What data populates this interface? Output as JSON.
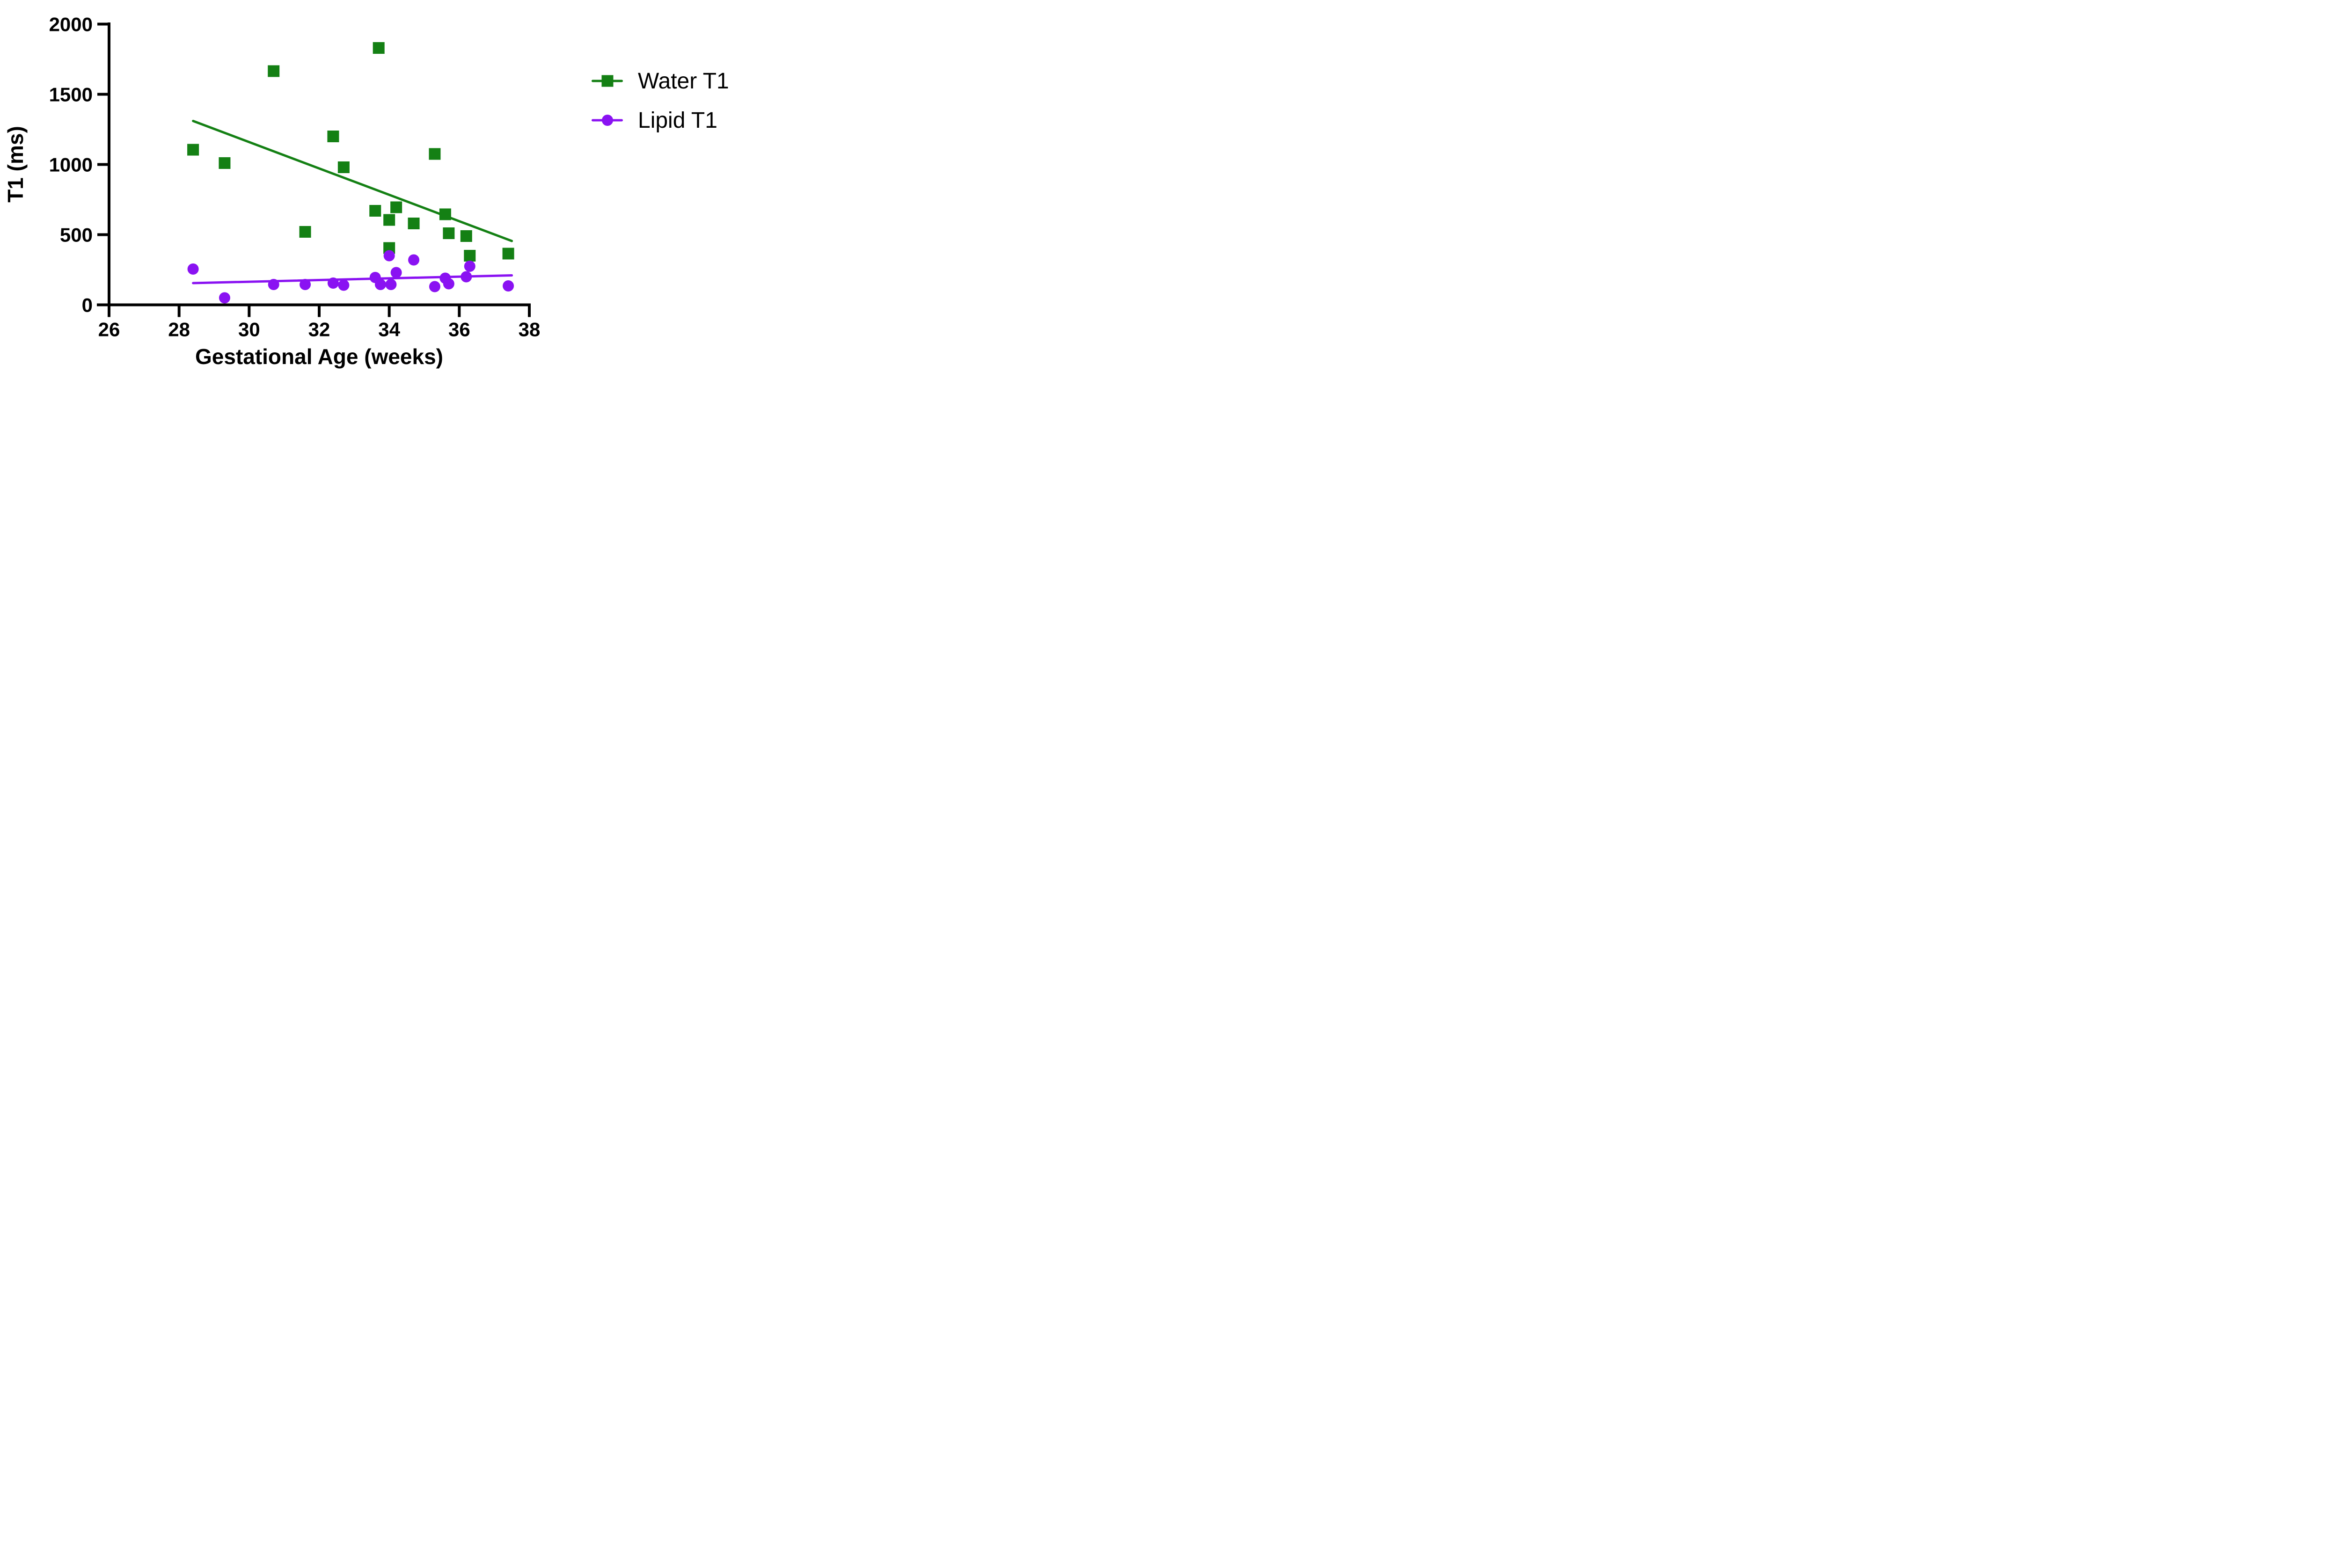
{
  "figure": {
    "background_color": "#ffffff",
    "text_color": "#000000"
  },
  "chart_data": {
    "type": "scatter",
    "title": "",
    "xlabel": "Gestational Age (weeks)",
    "ylabel": "T1 (ms)",
    "xlim": [
      26,
      38
    ],
    "ylim": [
      0,
      2000
    ],
    "x_ticks": [
      26,
      28,
      30,
      32,
      34,
      36,
      38
    ],
    "y_ticks": [
      0,
      500,
      1000,
      1500,
      2000
    ],
    "grid": false,
    "legend_position": "right",
    "series": [
      {
        "name": "Water T1",
        "marker": "square",
        "color": "#148014",
        "x": [
          28.4,
          29.3,
          30.7,
          31.6,
          32.4,
          32.7,
          33.6,
          33.7,
          34.0,
          34.0,
          34.2,
          34.7,
          35.3,
          35.6,
          35.7,
          36.2,
          36.3,
          37.4
        ],
        "y": [
          1105,
          1010,
          1665,
          520,
          1200,
          980,
          670,
          1830,
          605,
          405,
          695,
          580,
          1075,
          645,
          510,
          490,
          350,
          365
        ],
        "trend_line": {
          "x1": 28.4,
          "y1": 1310,
          "x2": 37.5,
          "y2": 455
        }
      },
      {
        "name": "Lipid T1",
        "marker": "circle",
        "color": "#8A12F2",
        "x": [
          28.4,
          29.3,
          30.7,
          31.6,
          32.4,
          32.7,
          33.6,
          33.75,
          34.0,
          34.05,
          34.2,
          34.7,
          35.3,
          35.6,
          35.7,
          36.2,
          36.3,
          37.4
        ],
        "y": [
          255,
          50,
          145,
          145,
          155,
          140,
          195,
          145,
          350,
          145,
          230,
          320,
          130,
          190,
          150,
          200,
          275,
          135
        ],
        "trend_line": {
          "x1": 28.4,
          "y1": 155,
          "x2": 37.5,
          "y2": 210
        }
      }
    ]
  }
}
